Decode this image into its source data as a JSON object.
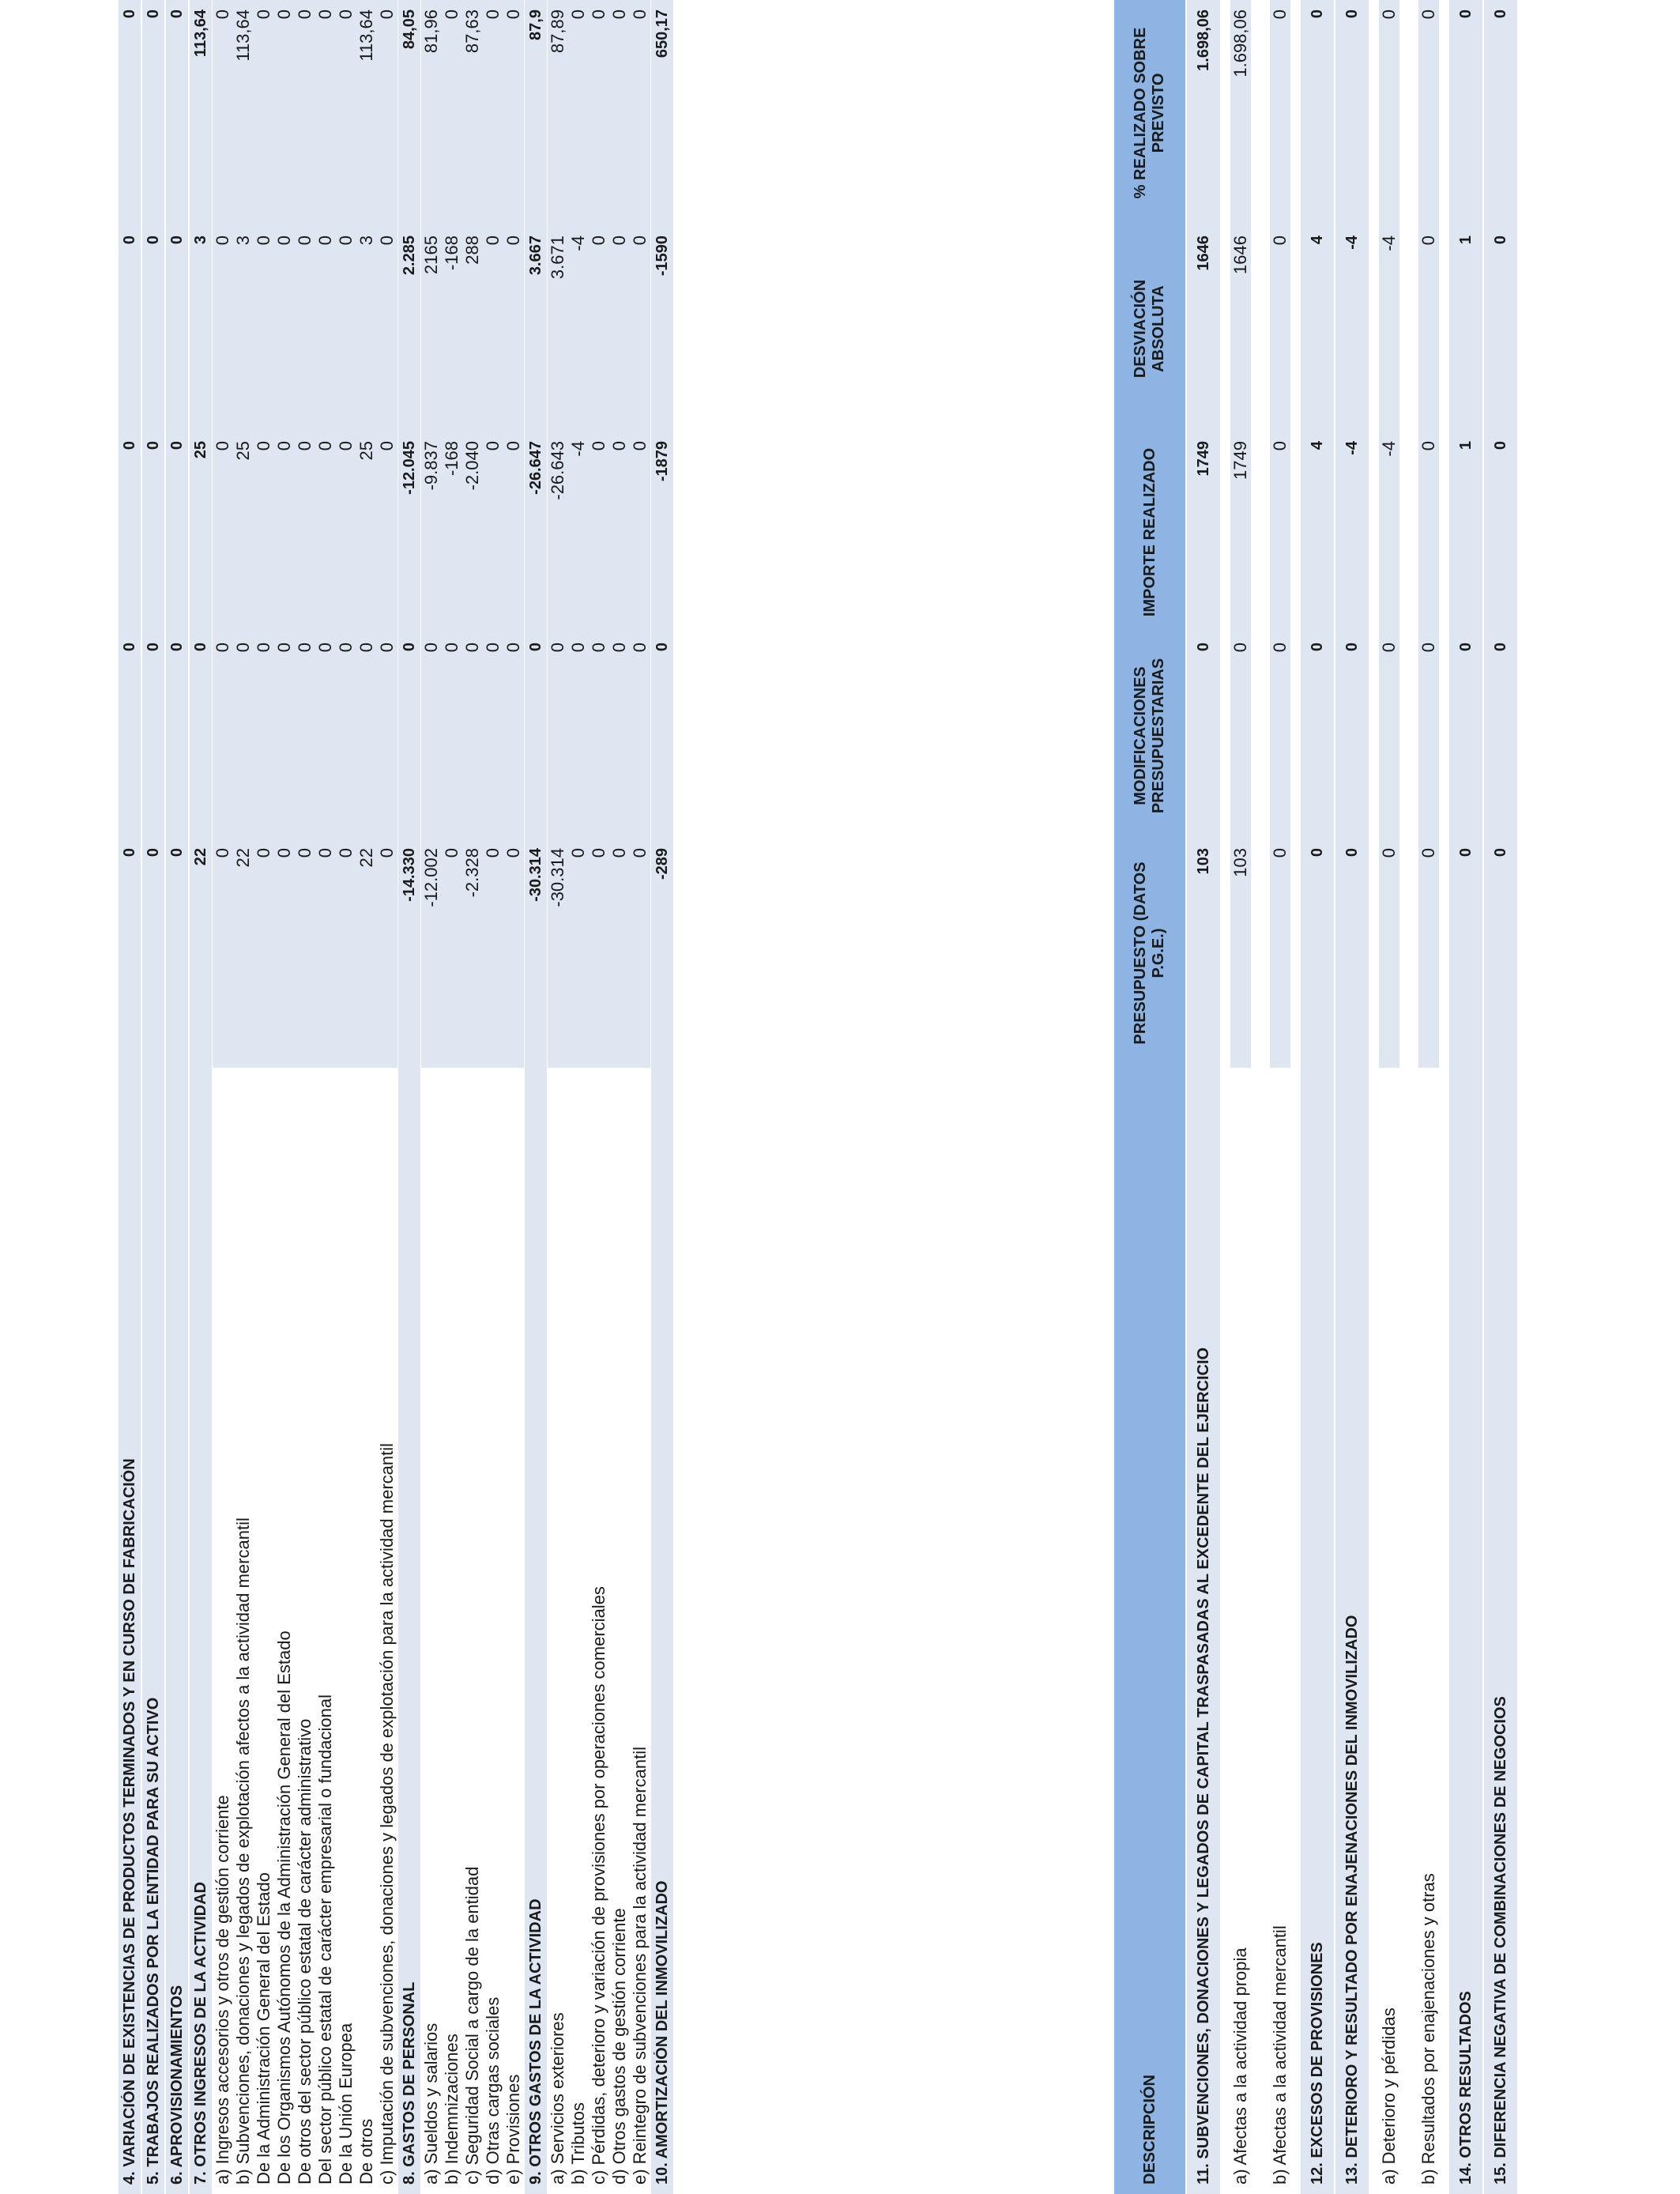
{
  "table1": {
    "rows": [
      {
        "type": "bold",
        "desc": "4. VARIACIÓN DE EXISTENCIAS DE PRODUCTOS TERMINADOS Y EN CURSO DE FABRICACIÓN",
        "presupuesto": "0",
        "modificaciones": "0",
        "importe": "0",
        "desviacion": "0",
        "porcentaje": "0"
      },
      {
        "type": "bold",
        "desc": "5. TRABAJOS REALIZADOS POR LA ENTIDAD PARA SU ACTIVO",
        "presupuesto": "0",
        "modificaciones": "0",
        "importe": "0",
        "desviacion": "0",
        "porcentaje": "0"
      },
      {
        "type": "bold",
        "desc": "6. APROVISIONAMIENTOS",
        "presupuesto": "0",
        "modificaciones": "0",
        "importe": "0",
        "desviacion": "0",
        "porcentaje": "0"
      },
      {
        "type": "bold",
        "desc": "7. OTROS INGRESOS DE LA ACTIVIDAD",
        "presupuesto": "22",
        "modificaciones": "0",
        "importe": "25",
        "desviacion": "3",
        "porcentaje": "113,64"
      },
      {
        "type": "sub",
        "desc": "a) Ingresos accesorios y otros de gestión corriente",
        "presupuesto": "0",
        "modificaciones": "0",
        "importe": "0",
        "desviacion": "0",
        "porcentaje": "0"
      },
      {
        "type": "sub",
        "desc": "b) Subvenciones, donaciones y legados de explotación afectos a la actividad mercantil",
        "presupuesto": "22",
        "modificaciones": "0",
        "importe": "25",
        "desviacion": "3",
        "porcentaje": "113,64"
      },
      {
        "type": "sub",
        "desc": "De la Administración General del Estado",
        "presupuesto": "0",
        "modificaciones": "0",
        "importe": "0",
        "desviacion": "0",
        "porcentaje": "0"
      },
      {
        "type": "sub",
        "desc": "De los Organismos Autónomos de la Administración General del Estado",
        "presupuesto": "0",
        "modificaciones": "0",
        "importe": "0",
        "desviacion": "0",
        "porcentaje": "0"
      },
      {
        "type": "sub",
        "desc": "De otros del sector público estatal de carácter administrativo",
        "presupuesto": "0",
        "modificaciones": "0",
        "importe": "0",
        "desviacion": "0",
        "porcentaje": "0"
      },
      {
        "type": "sub",
        "desc": "Del sector público estatal de carácter empresarial o fundacional",
        "presupuesto": "0",
        "modificaciones": "0",
        "importe": "0",
        "desviacion": "0",
        "porcentaje": "0"
      },
      {
        "type": "sub",
        "desc": "De la Unión Europea",
        "presupuesto": "0",
        "modificaciones": "0",
        "importe": "0",
        "desviacion": "0",
        "porcentaje": "0"
      },
      {
        "type": "sub",
        "desc": "De otros",
        "presupuesto": "22",
        "modificaciones": "0",
        "importe": "25",
        "desviacion": "3",
        "porcentaje": "113,64"
      },
      {
        "type": "sub",
        "desc": "c) Imputación de subvenciones, donaciones y legados de explotación para la actividad mercantil",
        "presupuesto": "0",
        "modificaciones": "0",
        "importe": "0",
        "desviacion": "0",
        "porcentaje": "0"
      },
      {
        "type": "bold",
        "desc": "8. GASTOS DE PERSONAL",
        "presupuesto": "-14.330",
        "modificaciones": "0",
        "importe": "-12.045",
        "desviacion": "2.285",
        "porcentaje": "84,05"
      },
      {
        "type": "sub",
        "desc": "a) Sueldos y salarios",
        "presupuesto": "-12.002",
        "modificaciones": "0",
        "importe": "-9.837",
        "desviacion": "2165",
        "porcentaje": "81,96"
      },
      {
        "type": "sub",
        "desc": "b) Indemnizaciones",
        "presupuesto": "0",
        "modificaciones": "0",
        "importe": "-168",
        "desviacion": "-168",
        "porcentaje": "0"
      },
      {
        "type": "sub",
        "desc": "c) Seguridad Social a cargo de la entidad",
        "presupuesto": "-2.328",
        "modificaciones": "0",
        "importe": "-2.040",
        "desviacion": "288",
        "porcentaje": "87,63"
      },
      {
        "type": "sub",
        "desc": "d) Otras cargas sociales",
        "presupuesto": "0",
        "modificaciones": "0",
        "importe": "0",
        "desviacion": "0",
        "porcentaje": "0"
      },
      {
        "type": "sub",
        "desc": "e) Provisiones",
        "presupuesto": "0",
        "modificaciones": "0",
        "importe": "0",
        "desviacion": "0",
        "porcentaje": "0"
      },
      {
        "type": "bold",
        "desc": "9. OTROS GASTOS DE LA ACTIVIDAD",
        "presupuesto": "-30.314",
        "modificaciones": "0",
        "importe": "-26.647",
        "desviacion": "3.667",
        "porcentaje": "87,9"
      },
      {
        "type": "sub",
        "desc": "a) Servicios exteriores",
        "presupuesto": "-30.314",
        "modificaciones": "0",
        "importe": "-26.643",
        "desviacion": "3.671",
        "porcentaje": "87,89"
      },
      {
        "type": "sub",
        "desc": "b) Tributos",
        "presupuesto": "0",
        "modificaciones": "0",
        "importe": "-4",
        "desviacion": "-4",
        "porcentaje": "0"
      },
      {
        "type": "sub",
        "desc": "c) Pérdidas, deterioro y variación de provisiones por operaciones comerciales",
        "presupuesto": "0",
        "modificaciones": "0",
        "importe": "0",
        "desviacion": "0",
        "porcentaje": "0"
      },
      {
        "type": "sub",
        "desc": "d) Otros gastos de gestión corriente",
        "presupuesto": "0",
        "modificaciones": "0",
        "importe": "0",
        "desviacion": "0",
        "porcentaje": "0"
      },
      {
        "type": "sub",
        "desc": "e) Reintegro de subvenciones para la actividad mercantil",
        "presupuesto": "0",
        "modificaciones": "0",
        "importe": "0",
        "desviacion": "0",
        "porcentaje": "0"
      },
      {
        "type": "bold",
        "desc": "10. AMORTIZACIÓN DEL INMOVILIZADO",
        "presupuesto": "-289",
        "modificaciones": "0",
        "importe": "-1879",
        "desviacion": "-1590",
        "porcentaje": "650,17"
      }
    ]
  },
  "table2": {
    "header": {
      "desc": "DESCRIPCIÓN",
      "presupuesto": "PRESUPUESTO (DATOS P.G.E.)",
      "modificaciones": "MODIFICACIONES PRESUPUESTARIAS",
      "importe": "IMPORTE REALIZADO",
      "desviacion": "DESVIACIÓN ABSOLUTA",
      "porcentaje": "% REALIZADO SOBRE PREVISTO"
    },
    "rows": [
      {
        "type": "bold",
        "desc": "11. SUBVENCIONES, DONACIONES Y LEGADOS DE CAPITAL TRASPASADAS AL EXCEDENTE DEL EJERCICIO",
        "presupuesto": "103",
        "modificaciones": "0",
        "importe": "1749",
        "desviacion": "1646",
        "porcentaje": "1.698,06"
      },
      {
        "type": "sub",
        "desc": "a) Afectas a la actividad propia",
        "presupuesto": "103",
        "modificaciones": "0",
        "importe": "1749",
        "desviacion": "1646",
        "porcentaje": "1.698,06"
      },
      {
        "type": "sub",
        "desc": "b) Afectas a la actividad mercantil",
        "presupuesto": "0",
        "modificaciones": "0",
        "importe": "0",
        "desviacion": "0",
        "porcentaje": "0"
      },
      {
        "type": "bold",
        "desc": "12. EXCESOS DE PROVISIONES",
        "presupuesto": "0",
        "modificaciones": "0",
        "importe": "4",
        "desviacion": "4",
        "porcentaje": "0"
      },
      {
        "type": "bold",
        "desc": "13. DETERIORO Y RESULTADO POR ENAJENACIONES DEL INMOVILIZADO",
        "presupuesto": "0",
        "modificaciones": "0",
        "importe": "-4",
        "desviacion": "-4",
        "porcentaje": "0"
      },
      {
        "type": "sub",
        "desc": "a) Deterioro y pérdidas",
        "presupuesto": "0",
        "modificaciones": "0",
        "importe": "-4",
        "desviacion": "-4",
        "porcentaje": "0"
      },
      {
        "type": "sub",
        "desc": "b) Resultados por enajenaciones y otras",
        "presupuesto": "0",
        "modificaciones": "0",
        "importe": "0",
        "desviacion": "0",
        "porcentaje": "0"
      },
      {
        "type": "bold",
        "desc": "14. OTROS RESULTADOS",
        "presupuesto": "0",
        "modificaciones": "0",
        "importe": "1",
        "desviacion": "1",
        "porcentaje": "0"
      },
      {
        "type": "bold",
        "desc": "15. DIFERENCIA NEGATIVA DE COMBINACIONES DE NEGOCIOS",
        "presupuesto": "0",
        "modificaciones": "0",
        "importe": "0",
        "desviacion": "0",
        "porcentaje": "0"
      }
    ]
  }
}
